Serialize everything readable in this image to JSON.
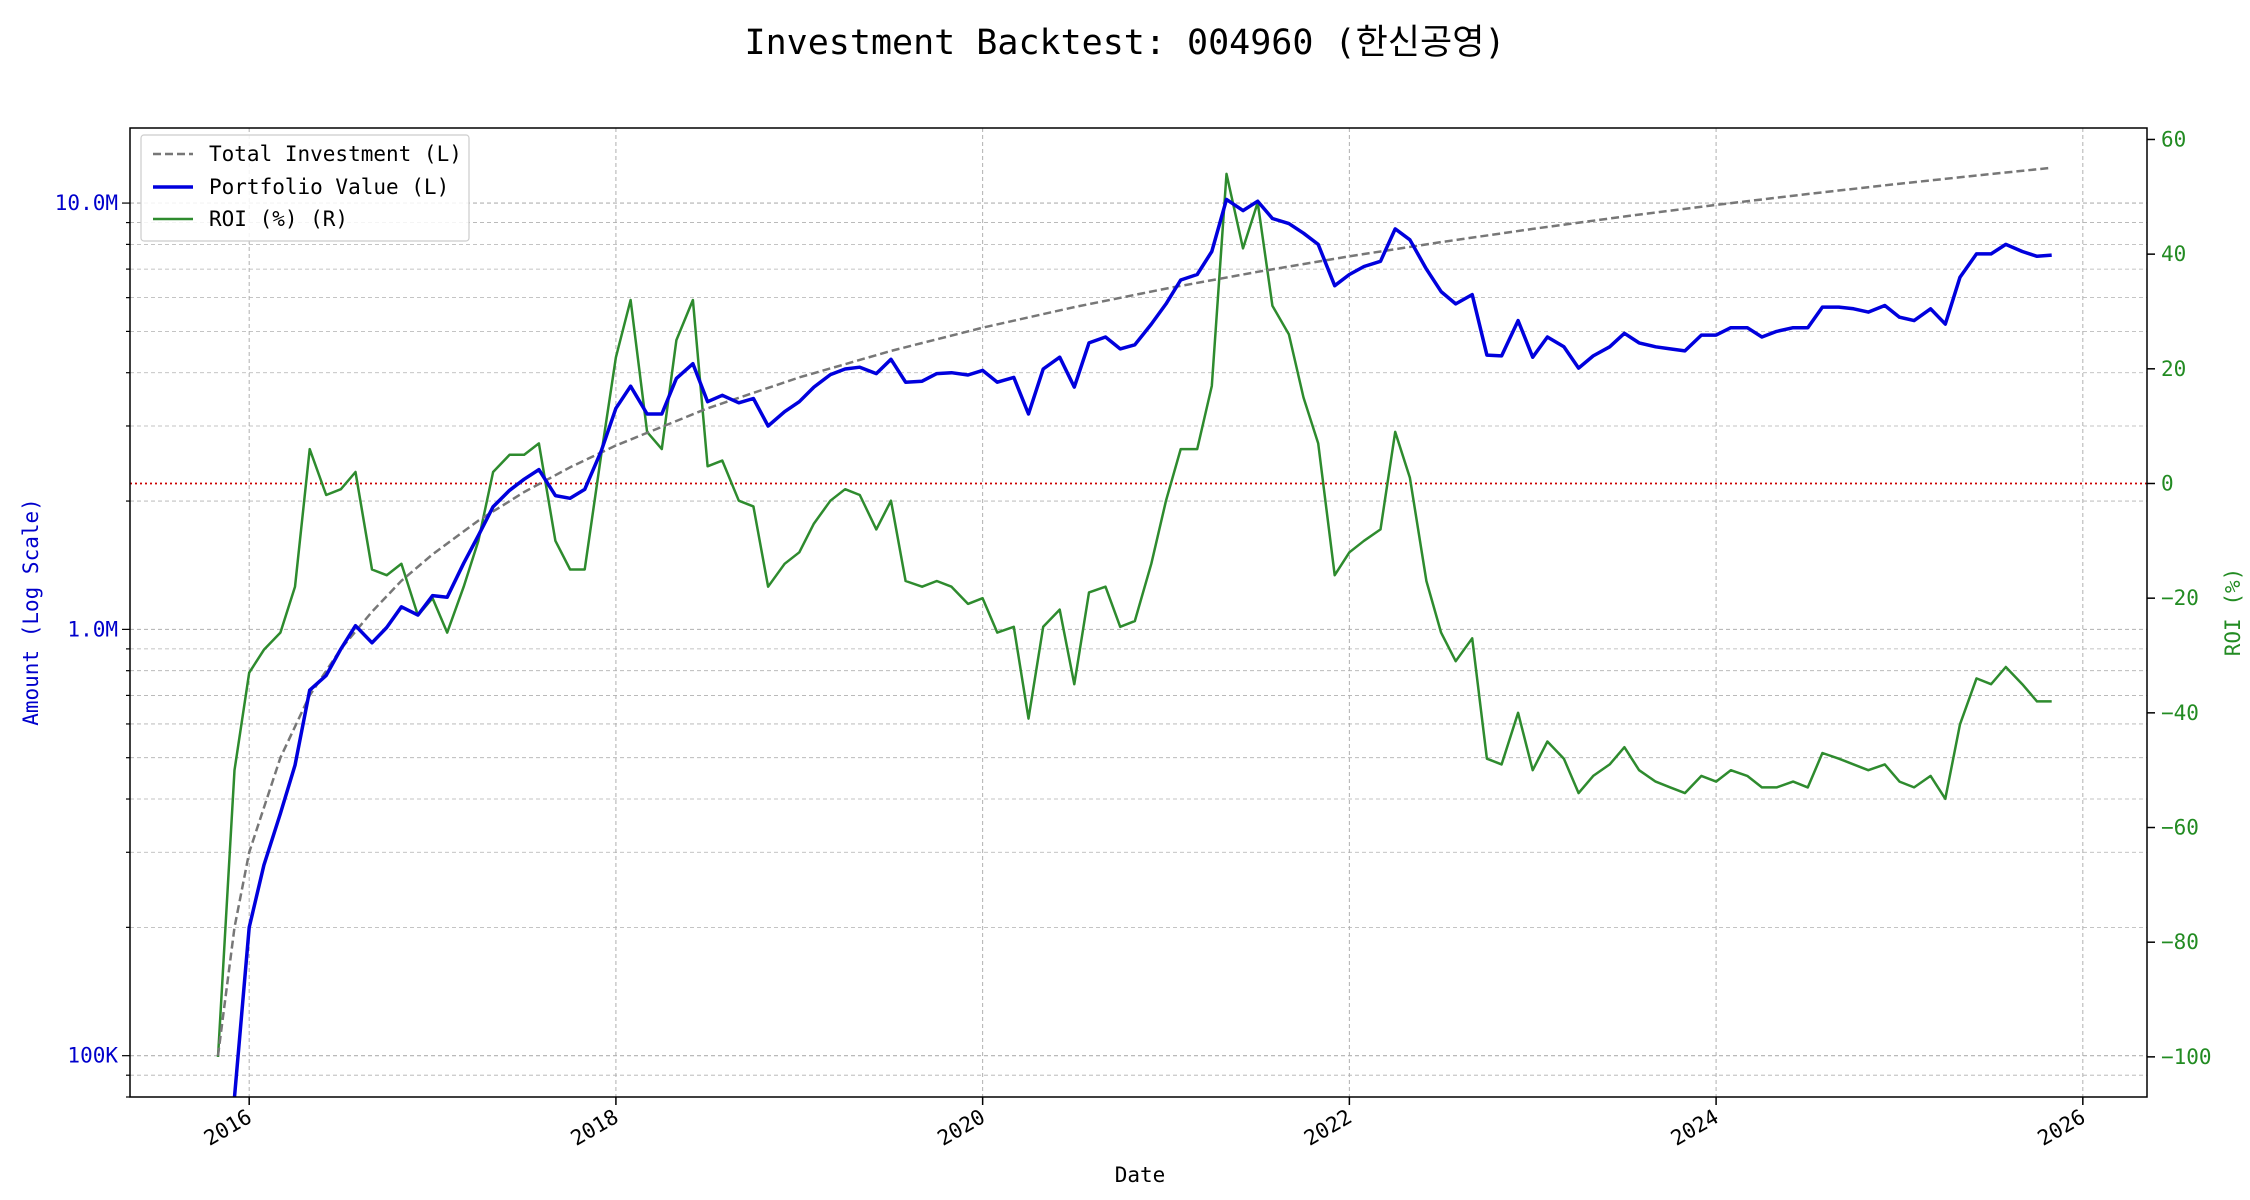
{
  "title": "Investment Backtest: 004960 (한신공영)",
  "colors": {
    "investment": "#777777",
    "portfolio": "#0000dd",
    "roi": "#2e8b2e",
    "zero_line": "#cc0000",
    "grid": "#b0b0b0",
    "left_axis_text": "#0000cc",
    "right_axis_text": "#228b22"
  },
  "chart_data": {
    "type": "line",
    "title": "Investment Backtest: 004960 (한신공영)",
    "xlabel": "Date",
    "ylabel_left": "Amount (Log Scale)",
    "ylabel_right": "ROI (%)",
    "left_scale": "log",
    "xlim": [
      2015.35,
      2026.35
    ],
    "ylim_left": [
      80000,
      15000000
    ],
    "ylim_right": [
      -107,
      62
    ],
    "x_ticks": [
      2016,
      2018,
      2020,
      2022,
      2024,
      2026
    ],
    "x_tick_labels": [
      "2016",
      "2018",
      "2020",
      "2022",
      "2024",
      "2026"
    ],
    "left_ticks": [
      100000,
      1000000,
      10000000
    ],
    "left_tick_labels": [
      "100K",
      "1.0M",
      "10.0M"
    ],
    "right_ticks": [
      60,
      40,
      20,
      0,
      -20,
      -40,
      -60,
      -80,
      -100
    ],
    "right_tick_labels": [
      "60",
      "40",
      "20",
      "0",
      "−20",
      "−40",
      "−60",
      "−80",
      "−100"
    ],
    "grid": true,
    "legend_position": "top-left",
    "reference_line": {
      "axis": "right",
      "value": 0,
      "style": "dotted"
    },
    "series": [
      {
        "name": "Total Investment (L)",
        "axis": "left",
        "style": "dashed",
        "x": [
          2015.83,
          2015.92,
          2016.0,
          2016.17,
          2016.33,
          2016.5,
          2016.67,
          2016.83,
          2017.0,
          2017.25,
          2017.5,
          2017.75,
          2018.0,
          2018.5,
          2019.0,
          2019.5,
          2020.0,
          2020.5,
          2021.0,
          2021.5,
          2022.0,
          2022.5,
          2023.0,
          2023.5,
          2024.0,
          2024.5,
          2025.0,
          2025.5,
          2025.83
        ],
        "y": [
          100000,
          200000,
          300000,
          500000,
          700000,
          900000,
          1100000,
          1300000,
          1500000,
          1800000,
          2100000,
          2400000,
          2700000,
          3300000,
          3900000,
          4500000,
          5100000,
          5700000,
          6300000,
          6900000,
          7500000,
          8100000,
          8700000,
          9300000,
          9900000,
          10500000,
          11100000,
          11700000,
          12100000
        ]
      },
      {
        "name": "Portfolio Value (L)",
        "axis": "left",
        "style": "solid",
        "x": [
          2015.92,
          2016.0,
          2016.08,
          2016.17,
          2016.25,
          2016.33,
          2016.42,
          2016.5,
          2016.58,
          2016.67,
          2016.75,
          2016.83,
          2016.92,
          2017.0,
          2017.08,
          2017.17,
          2017.25,
          2017.33,
          2017.42,
          2017.5,
          2017.58,
          2017.67,
          2017.75,
          2017.83,
          2017.92,
          2018.0,
          2018.08,
          2018.17,
          2018.25,
          2018.33,
          2018.42,
          2018.5,
          2018.58,
          2018.67,
          2018.75,
          2018.83,
          2018.92,
          2019.0,
          2019.08,
          2019.17,
          2019.25,
          2019.33,
          2019.42,
          2019.5,
          2019.58,
          2019.67,
          2019.75,
          2019.83,
          2019.92,
          2020.0,
          2020.08,
          2020.17,
          2020.25,
          2020.33,
          2020.42,
          2020.5,
          2020.58,
          2020.67,
          2020.75,
          2020.83,
          2020.92,
          2021.0,
          2021.08,
          2021.17,
          2021.25,
          2021.33,
          2021.42,
          2021.5,
          2021.58,
          2021.67,
          2021.75,
          2021.83,
          2021.92,
          2022.0,
          2022.08,
          2022.17,
          2022.25,
          2022.33,
          2022.42,
          2022.5,
          2022.58,
          2022.67,
          2022.75,
          2022.83,
          2022.92,
          2023.0,
          2023.08,
          2023.17,
          2023.25,
          2023.33,
          2023.42,
          2023.5,
          2023.58,
          2023.67,
          2023.75,
          2023.83,
          2023.92,
          2024.0,
          2024.08,
          2024.17,
          2024.25,
          2024.33,
          2024.42,
          2024.5,
          2024.58,
          2024.67,
          2024.75,
          2024.83,
          2024.92,
          2025.0,
          2025.08,
          2025.17,
          2025.25,
          2025.33,
          2025.42,
          2025.5,
          2025.58,
          2025.67,
          2025.75,
          2025.83
        ],
        "y": [
          80000,
          200000,
          280000,
          370000,
          480000,
          720000,
          780000,
          900000,
          1020000,
          930000,
          1010000,
          1130000,
          1080000,
          1200000,
          1190000,
          1430000,
          1660000,
          1940000,
          2120000,
          2250000,
          2370000,
          2060000,
          2030000,
          2130000,
          2620000,
          3300000,
          3720000,
          3200000,
          3200000,
          3880000,
          4200000,
          3420000,
          3540000,
          3400000,
          3480000,
          3000000,
          3240000,
          3420000,
          3700000,
          3960000,
          4080000,
          4120000,
          3980000,
          4300000,
          3800000,
          3820000,
          3980000,
          4000000,
          3950000,
          4050000,
          3800000,
          3900000,
          3200000,
          4080000,
          4350000,
          3700000,
          4700000,
          4850000,
          4550000,
          4650000,
          5200000,
          5800000,
          6600000,
          6800000,
          7700000,
          10200000,
          9600000,
          10100000,
          9200000,
          8950000,
          8500000,
          8000000,
          6400000,
          6800000,
          7100000,
          7300000,
          8700000,
          8200000,
          7000000,
          6200000,
          5800000,
          6100000,
          4400000,
          4380000,
          5300000,
          4350000,
          4850000,
          4600000,
          4100000,
          4380000,
          4600000,
          4950000,
          4700000,
          4600000,
          4550000,
          4500000,
          4900000,
          4900000,
          5100000,
          5100000,
          4850000,
          5000000,
          5100000,
          5100000,
          5700000,
          5700000,
          5650000,
          5550000,
          5750000,
          5400000,
          5300000,
          5650000,
          5200000,
          6700000,
          7600000,
          7600000,
          8000000,
          7700000,
          7500000,
          7550000
        ]
      },
      {
        "name": "ROI (%) (R)",
        "axis": "right",
        "style": "solid",
        "x": [
          2015.83,
          2015.92,
          2016.0,
          2016.08,
          2016.17,
          2016.25,
          2016.33,
          2016.42,
          2016.5,
          2016.58,
          2016.67,
          2016.75,
          2016.83,
          2016.92,
          2017.0,
          2017.08,
          2017.17,
          2017.25,
          2017.33,
          2017.42,
          2017.5,
          2017.58,
          2017.67,
          2017.75,
          2017.83,
          2017.92,
          2018.0,
          2018.08,
          2018.17,
          2018.25,
          2018.33,
          2018.42,
          2018.5,
          2018.58,
          2018.67,
          2018.75,
          2018.83,
          2018.92,
          2019.0,
          2019.08,
          2019.17,
          2019.25,
          2019.33,
          2019.42,
          2019.5,
          2019.58,
          2019.67,
          2019.75,
          2019.83,
          2019.92,
          2020.0,
          2020.08,
          2020.17,
          2020.25,
          2020.33,
          2020.42,
          2020.5,
          2020.58,
          2020.67,
          2020.75,
          2020.83,
          2020.92,
          2021.0,
          2021.08,
          2021.17,
          2021.25,
          2021.33,
          2021.42,
          2021.5,
          2021.58,
          2021.67,
          2021.75,
          2021.83,
          2021.92,
          2022.0,
          2022.08,
          2022.17,
          2022.25,
          2022.33,
          2022.42,
          2022.5,
          2022.58,
          2022.67,
          2022.75,
          2022.83,
          2022.92,
          2023.0,
          2023.08,
          2023.17,
          2023.25,
          2023.33,
          2023.42,
          2023.5,
          2023.58,
          2023.67,
          2023.75,
          2023.83,
          2023.92,
          2024.0,
          2024.08,
          2024.17,
          2024.25,
          2024.33,
          2024.42,
          2024.5,
          2024.58,
          2024.67,
          2024.75,
          2024.83,
          2024.92,
          2025.0,
          2025.08,
          2025.17,
          2025.25,
          2025.33,
          2025.42,
          2025.5,
          2025.58,
          2025.67,
          2025.75,
          2025.83
        ],
        "y": [
          -100,
          -50,
          -33,
          -29,
          -26,
          -18,
          6,
          -2,
          -1,
          2,
          -15,
          -16,
          -14,
          -23,
          -20,
          -26,
          -18,
          -10,
          2,
          5,
          5,
          7,
          -10,
          -15,
          -15,
          5,
          22,
          32,
          9,
          6,
          25,
          32,
          3,
          4,
          -3,
          -4,
          -18,
          -14,
          -12,
          -7,
          -3,
          -1,
          -2,
          -8,
          -3,
          -17,
          -18,
          -17,
          -18,
          -21,
          -20,
          -26,
          -25,
          -41,
          -25,
          -22,
          -35,
          -19,
          -18,
          -25,
          -24,
          -14,
          -3,
          6,
          6,
          17,
          54,
          41,
          49,
          31,
          26,
          15,
          7,
          -16,
          -12,
          -10,
          -8,
          9,
          1,
          -17,
          -26,
          -31,
          -27,
          -48,
          -49,
          -40,
          -50,
          -45,
          -48,
          -54,
          -51,
          -49,
          -46,
          -50,
          -52,
          -53,
          -54,
          -51,
          -52,
          -50,
          -51,
          -53,
          -53,
          -52,
          -53,
          -47,
          -48,
          -49,
          -50,
          -49,
          -52,
          -53,
          -51,
          -55,
          -42,
          -34,
          -35,
          -32,
          -35,
          -38,
          -38
        ]
      }
    ]
  }
}
